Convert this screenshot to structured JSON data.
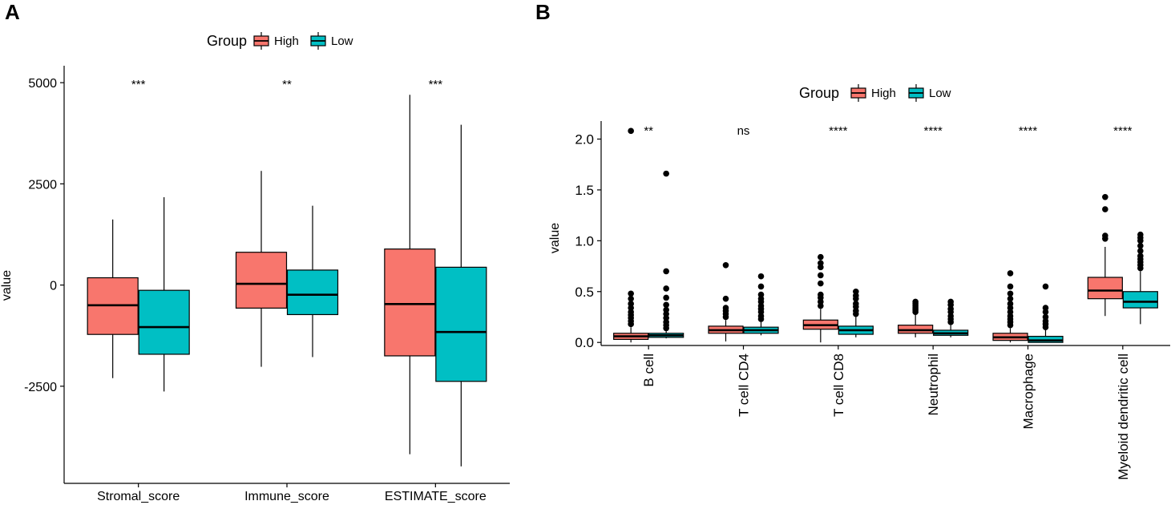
{
  "chart_data": [
    {
      "panel": "A",
      "type": "box",
      "ylabel": "value",
      "legend": {
        "title": "Group",
        "entries": [
          "High",
          "Low"
        ],
        "position": "top"
      },
      "colors": {
        "High": "#F8766D",
        "Low": "#00BFC4"
      },
      "ylim": [
        -4900,
        5300
      ],
      "yticks": [
        5000,
        2500,
        0,
        -2500
      ],
      "ytick_labels": [
        "5000",
        "2500",
        "0",
        "-2500"
      ],
      "categories": [
        "Stromal_score",
        "Immune_score",
        "ESTIMATE_score"
      ],
      "significance": [
        "***",
        "**",
        "***"
      ],
      "series": [
        {
          "name": "High",
          "boxes": [
            {
              "lower": -2300,
              "q1": -1220,
              "median": -500,
              "q3": 180,
              "upper": 1620
            },
            {
              "lower": -2020,
              "q1": -570,
              "median": 30,
              "q3": 810,
              "upper": 2820
            },
            {
              "lower": -4180,
              "q1": -1750,
              "median": -470,
              "q3": 890,
              "upper": 4700
            }
          ]
        },
        {
          "name": "Low",
          "boxes": [
            {
              "lower": -2630,
              "q1": -1710,
              "median": -1040,
              "q3": -130,
              "upper": 2170
            },
            {
              "lower": -1780,
              "q1": -730,
              "median": -240,
              "q3": 370,
              "upper": 1960
            },
            {
              "lower": -4480,
              "q1": -2380,
              "median": -1160,
              "q3": 440,
              "upper": 3960
            }
          ]
        }
      ]
    },
    {
      "panel": "B",
      "type": "box",
      "ylabel": "value",
      "legend": {
        "title": "Group",
        "entries": [
          "High",
          "Low"
        ],
        "position": "top"
      },
      "colors": {
        "High": "#F8766D",
        "Low": "#00BFC4"
      },
      "ylim": [
        -0.03,
        2.13
      ],
      "yticks": [
        0.0,
        0.5,
        1.0,
        1.5,
        2.0
      ],
      "ytick_labels": [
        "0.0",
        "0.5",
        "1.0",
        "1.5",
        "2.0"
      ],
      "categories": [
        "B cell",
        "T cell CD4",
        "T cell CD8",
        "Neutrophil",
        "Macrophage",
        "Myeloid dendritic cell"
      ],
      "significance": [
        "**",
        "ns",
        "****",
        "****",
        "****",
        "****"
      ],
      "series": [
        {
          "name": "High",
          "boxes": [
            {
              "lower": 0.0,
              "q1": 0.03,
              "median": 0.06,
              "q3": 0.09,
              "upper": 0.15,
              "outliers": [
                0.18,
                0.21,
                0.24,
                0.27,
                0.3,
                0.34,
                0.38,
                0.43,
                0.48,
                2.08
              ]
            },
            {
              "lower": 0.01,
              "q1": 0.09,
              "median": 0.12,
              "q3": 0.16,
              "upper": 0.22,
              "outliers": [
                0.25,
                0.28,
                0.31,
                0.34,
                0.43,
                0.76
              ]
            },
            {
              "lower": 0.0,
              "q1": 0.13,
              "median": 0.17,
              "q3": 0.22,
              "upper": 0.33,
              "outliers": [
                0.36,
                0.4,
                0.44,
                0.47,
                0.58,
                0.66,
                0.74,
                0.78,
                0.84
              ]
            },
            {
              "lower": 0.05,
              "q1": 0.09,
              "median": 0.12,
              "q3": 0.17,
              "upper": 0.28,
              "outliers": [
                0.3,
                0.32,
                0.34,
                0.36,
                0.38,
                0.4
              ]
            },
            {
              "lower": 0.0,
              "q1": 0.02,
              "median": 0.05,
              "q3": 0.09,
              "upper": 0.14,
              "outliers": [
                0.17,
                0.2,
                0.23,
                0.26,
                0.3,
                0.34,
                0.38,
                0.43,
                0.48,
                0.55,
                0.68
              ]
            },
            {
              "lower": 0.26,
              "q1": 0.43,
              "median": 0.51,
              "q3": 0.64,
              "upper": 0.94,
              "outliers": [
                1.02,
                1.05,
                1.31,
                1.43
              ]
            }
          ]
        },
        {
          "name": "Low",
          "boxes": [
            {
              "lower": 0.04,
              "q1": 0.05,
              "median": 0.07,
              "q3": 0.09,
              "upper": 0.12,
              "outliers": [
                0.14,
                0.17,
                0.2,
                0.24,
                0.28,
                0.32,
                0.37,
                0.44,
                0.53,
                0.7,
                1.66
              ]
            },
            {
              "lower": 0.07,
              "q1": 0.09,
              "median": 0.12,
              "q3": 0.15,
              "upper": 0.2,
              "outliers": [
                0.23,
                0.26,
                0.3,
                0.33,
                0.36,
                0.4,
                0.43,
                0.47,
                0.55,
                0.65
              ]
            },
            {
              "lower": 0.05,
              "q1": 0.08,
              "median": 0.12,
              "q3": 0.16,
              "upper": 0.25,
              "outliers": [
                0.28,
                0.31,
                0.35,
                0.38,
                0.43,
                0.46,
                0.5
              ]
            },
            {
              "lower": 0.05,
              "q1": 0.07,
              "median": 0.09,
              "q3": 0.12,
              "upper": 0.17,
              "outliers": [
                0.2,
                0.23,
                0.26,
                0.3,
                0.33,
                0.37,
                0.4
              ]
            },
            {
              "lower": 0.0,
              "q1": 0.0,
              "median": 0.02,
              "q3": 0.06,
              "upper": 0.12,
              "outliers": [
                0.15,
                0.18,
                0.21,
                0.25,
                0.3,
                0.34,
                0.55
              ]
            },
            {
              "lower": 0.18,
              "q1": 0.34,
              "median": 0.4,
              "q3": 0.5,
              "upper": 0.7,
              "outliers": [
                0.73,
                0.76,
                0.79,
                0.82,
                0.85,
                0.9,
                0.95,
                1.0,
                1.03,
                1.06
              ]
            }
          ]
        }
      ]
    }
  ]
}
